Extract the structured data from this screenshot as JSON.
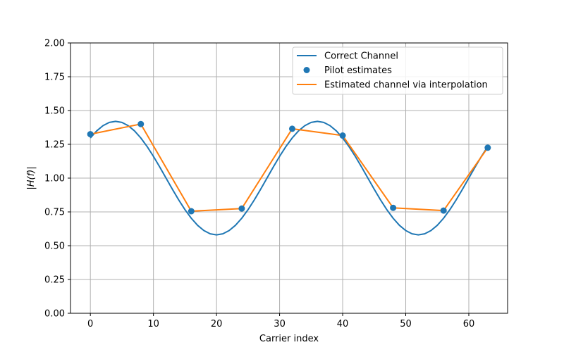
{
  "chart_data": {
    "type": "line",
    "title": "",
    "xlabel": "Carrier index",
    "ylabel": "|H(f)|",
    "xlim": [
      -3.15,
      66.15
    ],
    "ylim": [
      0,
      2
    ],
    "xticks": [
      0,
      10,
      20,
      30,
      40,
      50,
      60
    ],
    "yticks": [
      0.0,
      0.25,
      0.5,
      0.75,
      1.0,
      1.25,
      1.5,
      1.75,
      2.0
    ],
    "xtick_labels": [
      "0",
      "10",
      "20",
      "30",
      "40",
      "50",
      "60"
    ],
    "ytick_labels": [
      "0.00",
      "0.25",
      "0.50",
      "0.75",
      "1.00",
      "1.25",
      "1.50",
      "1.75",
      "2.00"
    ],
    "grid": true,
    "legend_position": "top-right",
    "series": [
      {
        "name": "Correct Channel",
        "kind": "line",
        "color": "#1f77b4",
        "model": {
          "offset": 1.0,
          "amplitude": 0.42,
          "period": 32,
          "peak_at": 4
        },
        "x_range": [
          0,
          63
        ]
      },
      {
        "name": "Pilot estimates",
        "kind": "scatter",
        "color": "#1f77b4",
        "x": [
          0,
          8,
          16,
          24,
          32,
          40,
          48,
          56,
          63
        ],
        "y": [
          1.325,
          1.4,
          0.755,
          0.775,
          1.365,
          1.315,
          0.78,
          0.76,
          1.225
        ]
      },
      {
        "name": "Estimated channel via interpolation",
        "kind": "line",
        "color": "#ff7f0e",
        "x": [
          0,
          8,
          16,
          24,
          32,
          40,
          48,
          56,
          63
        ],
        "y": [
          1.325,
          1.4,
          0.755,
          0.775,
          1.365,
          1.315,
          0.78,
          0.76,
          1.225
        ]
      }
    ]
  }
}
